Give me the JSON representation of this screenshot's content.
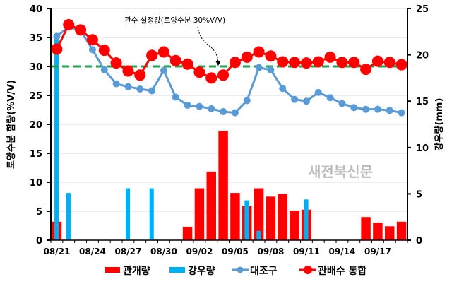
{
  "chart_data": {
    "type": "bar+line",
    "categories": [
      "08/21",
      "08/22",
      "08/23",
      "08/24",
      "08/25",
      "08/26",
      "08/27",
      "08/28",
      "08/29",
      "08/30",
      "08/31",
      "09/01",
      "09/02",
      "09/03",
      "09/04",
      "09/05",
      "09/06",
      "09/07",
      "09/08",
      "09/09",
      "09/10",
      "09/11",
      "09/12",
      "09/13",
      "09/14",
      "09/15",
      "09/16",
      "09/17",
      "09/18",
      "09/19"
    ],
    "xtick_labels": [
      "08/21",
      "08/24",
      "08/27",
      "08/30",
      "09/02",
      "09/05",
      "09/08",
      "09/11",
      "09/14",
      "09/17"
    ],
    "ylabel_left": "토양수분 함량(%V/V)",
    "ylabel_right": "강우량(mm)",
    "ylim_left": [
      0,
      40
    ],
    "ylim_right": [
      0,
      25
    ],
    "yticks_left": [
      0,
      5,
      10,
      15,
      20,
      25,
      30,
      35,
      40
    ],
    "yticks_right": [
      0,
      5,
      10,
      15,
      20,
      25
    ],
    "grid": true,
    "legend_position": "bottom",
    "series": [
      {
        "name": "관개량",
        "type": "bar",
        "axis": "right",
        "color": "#ff0000",
        "values": [
          2.0,
          0,
          0,
          0,
          0,
          0,
          0,
          0,
          0,
          0,
          0,
          1.45,
          5.6,
          7.4,
          11.8,
          5.1,
          3.7,
          5.6,
          4.7,
          5.0,
          3.2,
          3.3,
          0,
          0,
          0,
          0,
          2.5,
          1.9,
          1.5,
          2.0
        ]
      },
      {
        "name": "강우량",
        "type": "bar",
        "axis": "right",
        "color": "#00b0f0",
        "values": [
          22.0,
          5.1,
          0,
          0,
          0,
          0,
          5.6,
          0,
          5.6,
          0,
          0,
          0,
          0,
          0,
          0,
          0,
          4.3,
          1.0,
          0,
          0,
          0,
          4.4,
          0,
          0,
          0,
          0,
          0,
          0,
          0,
          0
        ]
      },
      {
        "name": "대조구",
        "type": "line",
        "axis": "left",
        "color": "#5b9bd5",
        "values": [
          35.2,
          36.8,
          36.2,
          32.9,
          29.4,
          27.0,
          26.5,
          26.1,
          25.8,
          29.3,
          24.7,
          23.3,
          23.1,
          22.7,
          22.2,
          22.0,
          24.1,
          29.8,
          29.4,
          26.2,
          24.3,
          24.0,
          25.5,
          24.6,
          23.6,
          22.9,
          22.6,
          22.6,
          22.4,
          22.0
        ]
      },
      {
        "name": "관배수 통합",
        "type": "line",
        "axis": "left",
        "color": "#ff0000",
        "values": [
          33.0,
          37.2,
          36.3,
          34.6,
          32.8,
          30.6,
          29.2,
          28.5,
          31.9,
          32.5,
          31.0,
          30.4,
          29.0,
          28.0,
          28.5,
          30.7,
          31.6,
          32.5,
          31.8,
          30.8,
          30.7,
          30.6,
          30.8,
          31.6,
          30.7,
          30.7,
          29.5,
          30.9,
          30.7,
          30.3
        ]
      }
    ],
    "threshold": {
      "value": 30,
      "color": "#22a050",
      "style": "dashed"
    },
    "annotation": "관수 설정값(토양수분 30%V/V)"
  },
  "watermark": "새전북신문"
}
